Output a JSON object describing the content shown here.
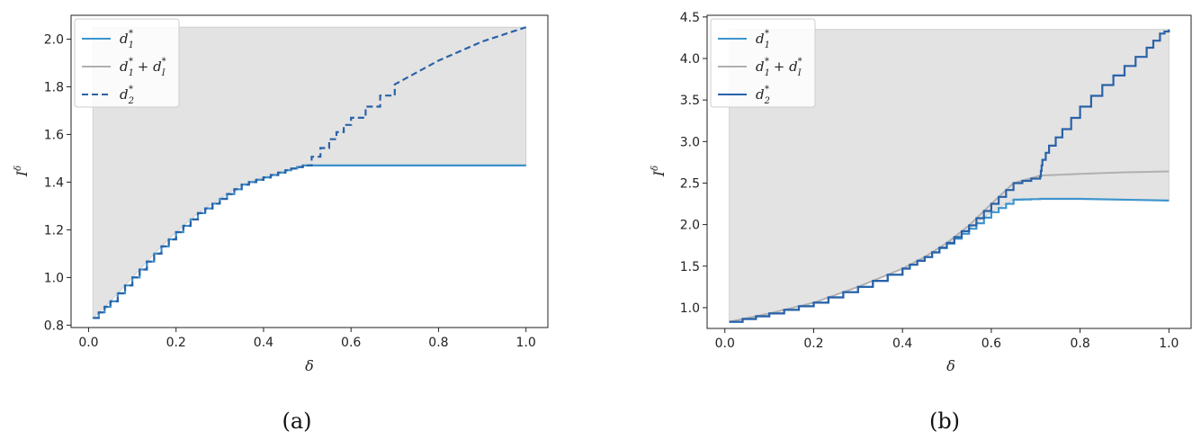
{
  "chart_data": [
    {
      "type": "line",
      "caption": "(a)",
      "xlabel": "δ",
      "ylabel": "I",
      "ylabel_sup": "δ",
      "xlim": [
        -0.04,
        1.05
      ],
      "ylim": [
        0.79,
        2.1
      ],
      "xticks": [
        0.0,
        0.2,
        0.4,
        0.6,
        0.8,
        1.0
      ],
      "xtick_labels": [
        "0.0",
        "0.2",
        "0.4",
        "0.6",
        "0.8",
        "1.0"
      ],
      "yticks": [
        0.8,
        1.0,
        1.2,
        1.4,
        1.6,
        1.8,
        2.0
      ],
      "ytick_labels": [
        "0.8",
        "1.0",
        "1.2",
        "1.4",
        "1.6",
        "1.8",
        "2.0"
      ],
      "legend_position": "top-left",
      "shade_top": 2.05,
      "series": [
        {
          "name": "d1*",
          "legend_label": "d",
          "legend_sub": "1",
          "legend_sup": "*",
          "style": "solid",
          "color": "#3d94cc",
          "x": [
            0.01,
            0.05,
            0.1,
            0.15,
            0.2,
            0.25,
            0.3,
            0.35,
            0.4,
            0.45,
            0.49,
            0.55,
            0.6,
            0.7,
            0.8,
            0.9,
            1.0
          ],
          "y": [
            0.83,
            0.9,
            1.0,
            1.1,
            1.19,
            1.27,
            1.33,
            1.39,
            1.42,
            1.45,
            1.47,
            1.47,
            1.47,
            1.47,
            1.47,
            1.47,
            1.47
          ],
          "step": true
        },
        {
          "name": "d1*+dI*",
          "legend_label": "d",
          "legend_sub": "1",
          "legend_sup": "*",
          "legend_extra": " + d",
          "legend_sub2": "I",
          "legend_sup2": "*",
          "style": "solid",
          "color": "#b0b0b0",
          "x": [
            0.01,
            0.05,
            0.1,
            0.15,
            0.2,
            0.25,
            0.3,
            0.35,
            0.4,
            0.45,
            0.49,
            0.55,
            0.6,
            0.7,
            0.8,
            0.9,
            1.0
          ],
          "y": [
            0.83,
            0.9,
            1.0,
            1.1,
            1.19,
            1.27,
            1.33,
            1.39,
            1.42,
            1.45,
            1.47,
            1.47,
            1.47,
            1.47,
            1.47,
            1.47,
            1.47
          ],
          "step": true
        },
        {
          "name": "d2*",
          "legend_label": "d",
          "legend_sub": "2",
          "legend_sup": "*",
          "style": "dashed",
          "color": "#2a62a8",
          "x": [
            0.01,
            0.05,
            0.1,
            0.15,
            0.2,
            0.25,
            0.3,
            0.35,
            0.4,
            0.45,
            0.49,
            0.55,
            0.6,
            0.7,
            0.8,
            0.9,
            1.0
          ],
          "y": [
            0.83,
            0.9,
            1.0,
            1.1,
            1.19,
            1.27,
            1.33,
            1.39,
            1.42,
            1.45,
            1.47,
            1.58,
            1.67,
            1.81,
            1.91,
            1.99,
            2.05
          ],
          "step": true
        }
      ]
    },
    {
      "type": "line",
      "caption": "(b)",
      "xlabel": "δ",
      "ylabel": "I",
      "ylabel_sup": "δ",
      "xlim": [
        -0.04,
        1.05
      ],
      "ylim": [
        0.75,
        4.52
      ],
      "xticks": [
        0.0,
        0.2,
        0.4,
        0.6,
        0.8,
        1.0
      ],
      "xtick_labels": [
        "0.0",
        "0.2",
        "0.4",
        "0.6",
        "0.8",
        "1.0"
      ],
      "yticks": [
        1.0,
        1.5,
        2.0,
        2.5,
        3.0,
        3.5,
        4.0,
        4.5
      ],
      "ytick_labels": [
        "1.0",
        "1.5",
        "2.0",
        "2.5",
        "3.0",
        "3.5",
        "4.0",
        "4.5"
      ],
      "legend_position": "top-left",
      "shade_top": 4.35,
      "series": [
        {
          "name": "d1*",
          "legend_label": "d",
          "legend_sub": "1",
          "legend_sup": "*",
          "style": "solid",
          "color": "#3d94cc",
          "x": [
            0.01,
            0.1,
            0.2,
            0.3,
            0.4,
            0.45,
            0.5,
            0.55,
            0.6,
            0.65,
            0.71,
            0.8,
            0.9,
            1.0
          ],
          "y": [
            0.83,
            0.93,
            1.06,
            1.25,
            1.47,
            1.61,
            1.77,
            1.95,
            2.15,
            2.3,
            2.31,
            2.31,
            2.3,
            2.29
          ],
          "step": true
        },
        {
          "name": "d1*+dI*",
          "legend_label": "d",
          "legend_sub": "1",
          "legend_sup": "*",
          "legend_extra": " + d",
          "legend_sub2": "I",
          "legend_sup2": "*",
          "style": "solid",
          "color": "#b0b0b0",
          "x": [
            0.01,
            0.1,
            0.2,
            0.3,
            0.4,
            0.45,
            0.5,
            0.55,
            0.6,
            0.65,
            0.71,
            0.8,
            0.9,
            1.0
          ],
          "y": [
            0.83,
            0.93,
            1.06,
            1.25,
            1.47,
            1.61,
            1.78,
            1.99,
            2.25,
            2.5,
            2.59,
            2.61,
            2.63,
            2.64
          ],
          "step": false
        },
        {
          "name": "d2*",
          "legend_label": "d",
          "legend_sub": "2",
          "legend_sup": "*",
          "style": "solid",
          "color": "#2a62a8",
          "x": [
            0.01,
            0.1,
            0.2,
            0.3,
            0.4,
            0.45,
            0.5,
            0.55,
            0.6,
            0.65,
            0.71,
            0.715,
            0.73,
            0.76,
            0.8,
            0.85,
            0.9,
            0.95,
            0.98,
            1.0
          ],
          "y": [
            0.83,
            0.93,
            1.06,
            1.25,
            1.47,
            1.61,
            1.78,
            1.99,
            2.25,
            2.5,
            2.58,
            2.78,
            2.95,
            3.15,
            3.42,
            3.68,
            3.91,
            4.13,
            4.3,
            4.35
          ],
          "step": true
        }
      ]
    }
  ]
}
